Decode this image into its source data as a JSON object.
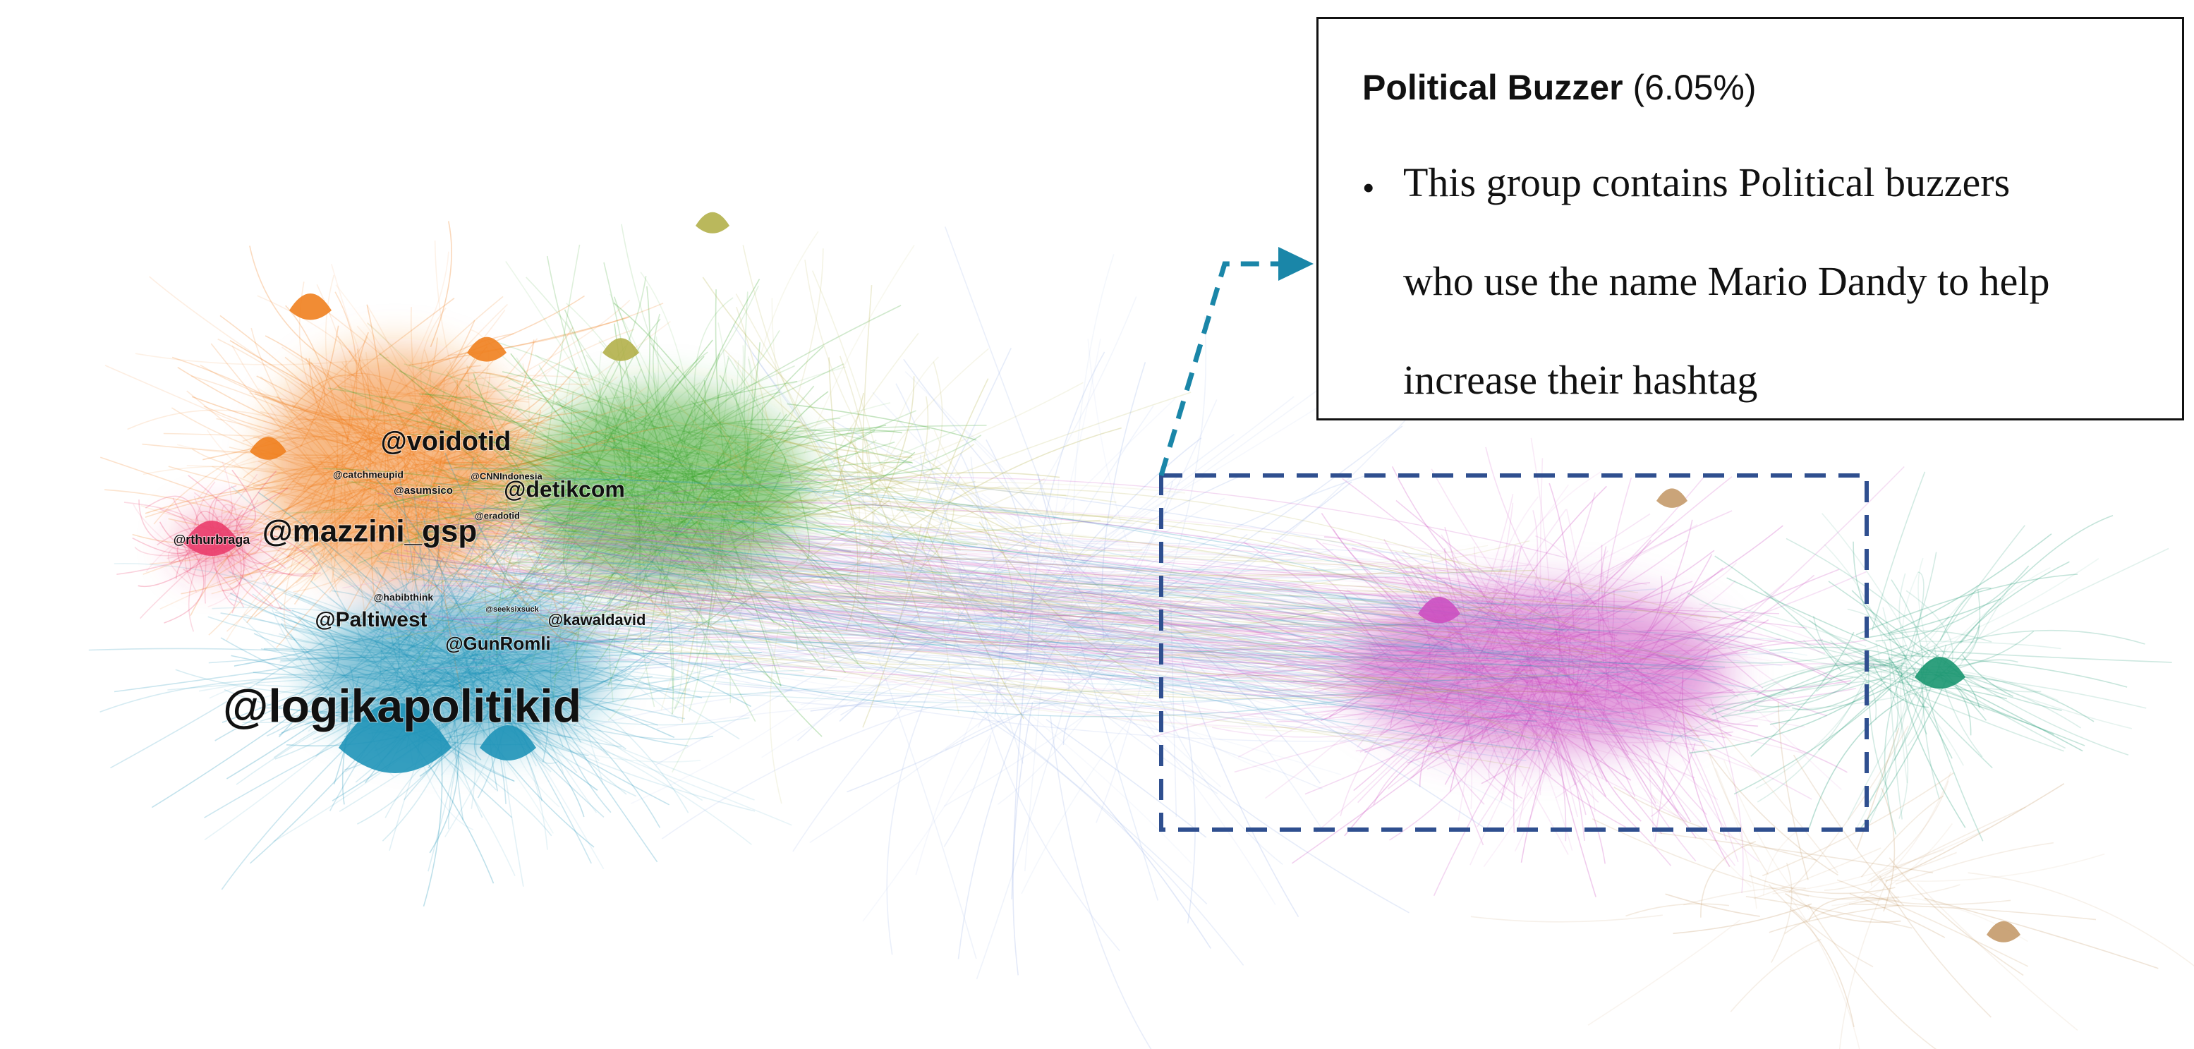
{
  "callout": {
    "title": "Political Buzzer",
    "share": "(6.05%)",
    "bullet": "•",
    "lines": [
      "This group contains Political buzzers",
      "who use the name Mario Dandy to help",
      "increase their hashtag"
    ]
  },
  "nodes": [
    {
      "label": "@logikapolitikid"
    },
    {
      "label": "@mazzini_gsp"
    },
    {
      "label": "@voidotid"
    },
    {
      "label": "@detikcom"
    },
    {
      "label": "@Paltiwest"
    },
    {
      "label": "@GunRomli"
    },
    {
      "label": "@rthurbraga"
    },
    {
      "label": "@kawaldavid"
    },
    {
      "label": "@catchmeupid"
    },
    {
      "label": "@asumsico"
    },
    {
      "label": "@CNNIndonesia"
    },
    {
      "label": "@eradotid"
    },
    {
      "label": "@habibthink"
    },
    {
      "label": "@seeksixsuck"
    }
  ]
}
